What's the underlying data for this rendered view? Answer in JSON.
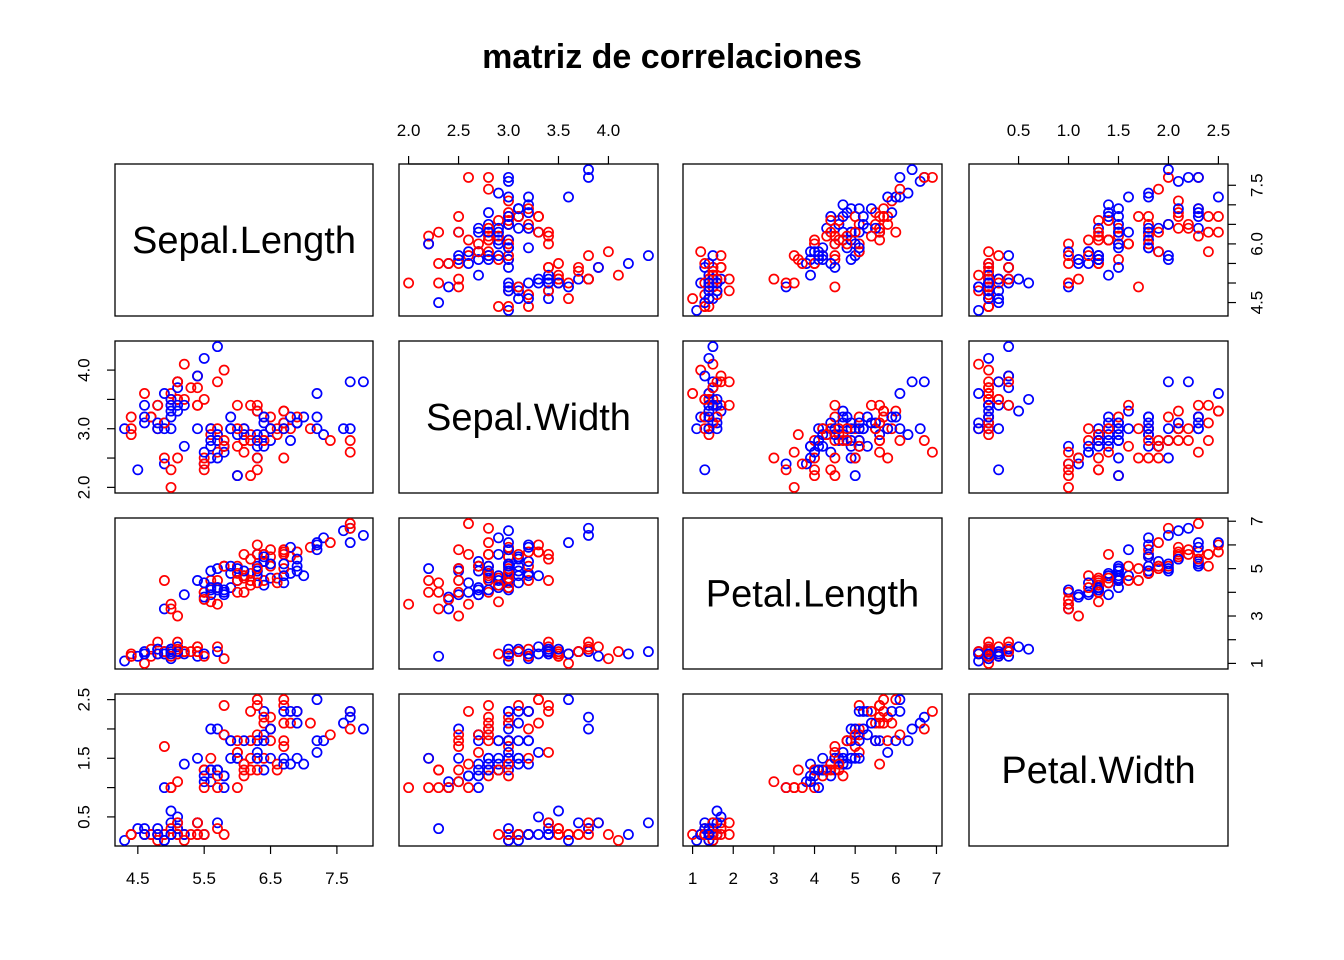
{
  "chart_data": {
    "type": "scatter",
    "title": "matriz de correlaciones",
    "variables": [
      "Sepal.Length",
      "Sepal.Width",
      "Petal.Length",
      "Petal.Width"
    ],
    "colors": [
      "#ff0000",
      "#0000ff"
    ],
    "axis_ranges": {
      "Sepal.Length": [
        4.3,
        7.9
      ],
      "Sepal.Width": [
        2.0,
        4.4
      ],
      "Petal.Length": [
        1.0,
        6.9
      ],
      "Petal.Width": [
        0.1,
        2.5
      ]
    },
    "tick_labels": {
      "Sepal.Length": [
        "4.5",
        "5.5",
        "6.5",
        "7.5"
      ],
      "Sepal.Width": [
        "2.0",
        "2.5",
        "3.0",
        "3.5",
        "4.0"
      ],
      "Petal.Length": [
        "1",
        "2",
        "3",
        "4",
        "5",
        "6",
        "7"
      ],
      "Petal.Width": [
        "0.5",
        "1.0",
        "1.5",
        "2.0",
        "2.5"
      ]
    },
    "side_tick_labels": {
      "Sepal.Length": [
        "4.5",
        "6.0",
        "7.5"
      ],
      "Sepal.Width": [
        "2.0",
        "3.0",
        "4.0"
      ],
      "Petal.Length": [
        "1",
        "3",
        "5",
        "7"
      ],
      "Petal.Width": [
        "0.5",
        "1.5",
        "2.5"
      ]
    },
    "grid": false,
    "legend": "none",
    "data_points": [
      [
        5.1,
        3.5,
        1.4,
        0.2,
        0
      ],
      [
        4.9,
        3.0,
        1.4,
        0.2,
        1
      ],
      [
        4.7,
        3.2,
        1.3,
        0.2,
        0
      ],
      [
        4.6,
        3.1,
        1.5,
        0.2,
        1
      ],
      [
        5.0,
        3.6,
        1.4,
        0.2,
        0
      ],
      [
        5.4,
        3.9,
        1.7,
        0.4,
        0
      ],
      [
        4.6,
        3.4,
        1.4,
        0.3,
        1
      ],
      [
        5.0,
        3.4,
        1.5,
        0.2,
        1
      ],
      [
        4.4,
        2.9,
        1.4,
        0.2,
        0
      ],
      [
        4.9,
        3.1,
        1.5,
        0.1,
        1
      ],
      [
        5.4,
        3.7,
        1.5,
        0.2,
        0
      ],
      [
        4.8,
        3.4,
        1.6,
        0.2,
        1
      ],
      [
        4.8,
        3.0,
        1.4,
        0.1,
        0
      ],
      [
        4.3,
        3.0,
        1.1,
        0.1,
        1
      ],
      [
        5.8,
        4.0,
        1.2,
        0.2,
        0
      ],
      [
        5.7,
        4.4,
        1.5,
        0.4,
        1
      ],
      [
        5.4,
        3.9,
        1.3,
        0.4,
        1
      ],
      [
        5.1,
        3.5,
        1.4,
        0.3,
        0
      ],
      [
        5.7,
        3.8,
        1.7,
        0.3,
        0
      ],
      [
        5.1,
        3.8,
        1.5,
        0.3,
        1
      ],
      [
        5.4,
        3.4,
        1.7,
        0.2,
        0
      ],
      [
        5.1,
        3.7,
        1.5,
        0.4,
        1
      ],
      [
        4.6,
        3.6,
        1.0,
        0.2,
        0
      ],
      [
        5.1,
        3.3,
        1.7,
        0.5,
        1
      ],
      [
        4.8,
        3.4,
        1.9,
        0.2,
        0
      ],
      [
        5.0,
        3.0,
        1.6,
        0.2,
        1
      ],
      [
        5.0,
        3.4,
        1.6,
        0.4,
        1
      ],
      [
        5.2,
        3.5,
        1.5,
        0.2,
        0
      ],
      [
        5.2,
        3.4,
        1.4,
        0.2,
        1
      ],
      [
        4.7,
        3.2,
        1.6,
        0.2,
        0
      ],
      [
        4.8,
        3.1,
        1.6,
        0.2,
        1
      ],
      [
        5.4,
        3.4,
        1.5,
        0.4,
        0
      ],
      [
        5.2,
        4.1,
        1.5,
        0.1,
        0
      ],
      [
        5.5,
        4.2,
        1.4,
        0.2,
        1
      ],
      [
        4.9,
        3.1,
        1.5,
        0.2,
        0
      ],
      [
        5.0,
        3.2,
        1.2,
        0.2,
        1
      ],
      [
        5.5,
        3.5,
        1.3,
        0.2,
        0
      ],
      [
        4.9,
        3.6,
        1.4,
        0.1,
        1
      ],
      [
        4.4,
        3.0,
        1.3,
        0.2,
        0
      ],
      [
        5.1,
        3.4,
        1.5,
        0.2,
        1
      ],
      [
        5.0,
        3.5,
        1.3,
        0.3,
        0
      ],
      [
        4.5,
        2.3,
        1.3,
        0.3,
        1
      ],
      [
        4.4,
        3.2,
        1.3,
        0.2,
        0
      ],
      [
        5.0,
        3.5,
        1.6,
        0.6,
        1
      ],
      [
        5.1,
        3.8,
        1.9,
        0.4,
        0
      ],
      [
        4.8,
        3.0,
        1.4,
        0.3,
        1
      ],
      [
        5.1,
        3.8,
        1.6,
        0.2,
        0
      ],
      [
        4.6,
        3.2,
        1.4,
        0.2,
        1
      ],
      [
        5.3,
        3.7,
        1.5,
        0.2,
        0
      ],
      [
        5.0,
        3.3,
        1.4,
        0.2,
        1
      ],
      [
        7.0,
        3.2,
        4.7,
        1.4,
        1
      ],
      [
        6.4,
        3.2,
        4.5,
        1.5,
        0
      ],
      [
        6.9,
        3.1,
        4.9,
        1.5,
        1
      ],
      [
        5.5,
        2.3,
        4.0,
        1.3,
        0
      ],
      [
        6.5,
        2.8,
        4.6,
        1.5,
        1
      ],
      [
        5.7,
        2.8,
        4.5,
        1.3,
        0
      ],
      [
        6.3,
        3.3,
        4.7,
        1.6,
        1
      ],
      [
        4.9,
        2.4,
        3.3,
        1.0,
        1
      ],
      [
        6.6,
        2.9,
        4.6,
        1.3,
        0
      ],
      [
        5.2,
        2.7,
        3.9,
        1.4,
        1
      ],
      [
        5.0,
        2.0,
        3.5,
        1.0,
        0
      ],
      [
        5.9,
        3.0,
        4.2,
        1.5,
        1
      ],
      [
        6.0,
        2.2,
        4.0,
        1.0,
        0
      ],
      [
        6.1,
        2.9,
        4.7,
        1.4,
        1
      ],
      [
        5.6,
        2.9,
        3.6,
        1.3,
        0
      ],
      [
        6.7,
        3.1,
        4.4,
        1.4,
        1
      ],
      [
        5.6,
        3.0,
        4.5,
        1.5,
        0
      ],
      [
        5.8,
        2.7,
        4.1,
        1.0,
        1
      ],
      [
        6.2,
        2.2,
        4.5,
        1.5,
        0
      ],
      [
        5.6,
        2.5,
        3.9,
        1.1,
        1
      ],
      [
        5.9,
        3.2,
        4.8,
        1.8,
        1
      ],
      [
        6.1,
        2.8,
        4.0,
        1.3,
        0
      ],
      [
        6.3,
        2.5,
        4.9,
        1.5,
        1
      ],
      [
        6.1,
        2.8,
        4.7,
        1.2,
        0
      ],
      [
        6.4,
        2.9,
        4.3,
        1.3,
        1
      ],
      [
        6.6,
        3.0,
        4.4,
        1.4,
        0
      ],
      [
        6.8,
        2.8,
        4.8,
        1.4,
        1
      ],
      [
        6.7,
        3.0,
        5.0,
        1.7,
        0
      ],
      [
        6.0,
        2.9,
        4.5,
        1.5,
        1
      ],
      [
        5.7,
        2.6,
        3.5,
        1.0,
        0
      ],
      [
        5.5,
        2.4,
        3.8,
        1.1,
        1
      ],
      [
        5.5,
        2.4,
        3.7,
        1.0,
        0
      ],
      [
        5.8,
        2.7,
        3.9,
        1.2,
        1
      ],
      [
        6.0,
        2.7,
        5.1,
        1.6,
        0
      ],
      [
        5.4,
        3.0,
        4.5,
        1.5,
        1
      ],
      [
        6.0,
        3.4,
        4.5,
        1.6,
        0
      ],
      [
        6.7,
        3.1,
        4.7,
        1.5,
        1
      ],
      [
        6.3,
        2.3,
        4.4,
        1.3,
        0
      ],
      [
        5.6,
        3.0,
        4.1,
        1.3,
        1
      ],
      [
        5.5,
        2.5,
        4.0,
        1.3,
        0
      ],
      [
        5.5,
        2.6,
        4.4,
        1.2,
        1
      ],
      [
        6.1,
        3.0,
        4.6,
        1.4,
        0
      ],
      [
        5.8,
        2.6,
        4.0,
        1.2,
        1
      ],
      [
        5.0,
        2.3,
        3.3,
        1.0,
        0
      ],
      [
        5.6,
        2.7,
        4.2,
        1.3,
        1
      ],
      [
        5.7,
        3.0,
        4.2,
        1.2,
        0
      ],
      [
        5.7,
        2.9,
        4.2,
        1.3,
        1
      ],
      [
        6.2,
        2.9,
        4.3,
        1.3,
        0
      ],
      [
        5.1,
        2.5,
        3.0,
        1.1,
        0
      ],
      [
        5.7,
        2.8,
        4.1,
        1.3,
        1
      ],
      [
        6.3,
        3.3,
        6.0,
        2.5,
        0
      ],
      [
        5.8,
        2.7,
        5.1,
        1.9,
        1
      ],
      [
        7.1,
        3.0,
        5.9,
        2.1,
        0
      ],
      [
        6.3,
        2.9,
        5.6,
        1.8,
        1
      ],
      [
        6.5,
        3.0,
        5.8,
        2.2,
        0
      ],
      [
        7.6,
        3.0,
        6.6,
        2.1,
        1
      ],
      [
        4.9,
        2.5,
        4.5,
        1.7,
        0
      ],
      [
        7.3,
        2.9,
        6.3,
        1.8,
        1
      ],
      [
        6.7,
        2.5,
        5.8,
        1.8,
        0
      ],
      [
        7.2,
        3.6,
        6.1,
        2.5,
        1
      ],
      [
        6.5,
        3.2,
        5.1,
        2.0,
        0
      ],
      [
        6.4,
        2.7,
        5.3,
        1.9,
        1
      ],
      [
        6.8,
        3.0,
        5.5,
        2.1,
        0
      ],
      [
        5.7,
        2.5,
        5.0,
        2.0,
        1
      ],
      [
        5.8,
        2.8,
        5.1,
        2.4,
        0
      ],
      [
        6.4,
        3.2,
        5.3,
        2.3,
        1
      ],
      [
        6.5,
        3.0,
        5.5,
        1.8,
        0
      ],
      [
        7.7,
        3.8,
        6.7,
        2.2,
        1
      ],
      [
        7.7,
        2.6,
        6.9,
        2.3,
        0
      ],
      [
        6.0,
        2.2,
        5.0,
        1.5,
        1
      ],
      [
        6.9,
        3.2,
        5.7,
        2.3,
        0
      ],
      [
        5.6,
        2.8,
        4.9,
        2.0,
        1
      ],
      [
        7.7,
        2.8,
        6.7,
        2.0,
        0
      ],
      [
        6.3,
        2.7,
        4.9,
        1.8,
        1
      ],
      [
        6.7,
        3.3,
        5.7,
        2.1,
        0
      ],
      [
        7.2,
        3.2,
        6.0,
        1.8,
        1
      ],
      [
        6.2,
        2.8,
        4.8,
        1.8,
        0
      ],
      [
        6.1,
        3.0,
        4.9,
        1.8,
        1
      ],
      [
        6.4,
        2.8,
        5.6,
        2.1,
        0
      ],
      [
        7.2,
        3.0,
        5.8,
        1.6,
        1
      ],
      [
        7.4,
        2.8,
        6.1,
        1.9,
        0
      ],
      [
        7.9,
        3.8,
        6.4,
        2.0,
        1
      ],
      [
        6.4,
        2.8,
        5.6,
        2.2,
        0
      ],
      [
        6.3,
        2.8,
        5.1,
        1.5,
        1
      ],
      [
        6.1,
        2.6,
        5.6,
        1.4,
        0
      ],
      [
        7.7,
        3.0,
        6.1,
        2.3,
        1
      ],
      [
        6.3,
        3.4,
        5.6,
        2.4,
        0
      ],
      [
        6.4,
        3.1,
        5.5,
        1.8,
        1
      ],
      [
        6.0,
        3.0,
        4.8,
        1.8,
        0
      ],
      [
        6.9,
        3.1,
        5.4,
        2.1,
        1
      ],
      [
        6.7,
        3.1,
        5.6,
        2.4,
        0
      ],
      [
        6.9,
        3.1,
        5.1,
        2.3,
        1
      ],
      [
        5.8,
        2.7,
        5.1,
        1.9,
        0
      ],
      [
        6.8,
        3.2,
        5.9,
        2.3,
        1
      ],
      [
        6.7,
        3.3,
        5.7,
        2.5,
        0
      ],
      [
        6.7,
        3.0,
        5.2,
        2.3,
        1
      ],
      [
        6.3,
        2.5,
        5.0,
        1.9,
        0
      ],
      [
        6.5,
        3.0,
        5.2,
        2.0,
        1
      ],
      [
        6.2,
        3.4,
        5.4,
        2.3,
        0
      ],
      [
        5.9,
        3.0,
        5.1,
        1.8,
        1
      ]
    ]
  }
}
